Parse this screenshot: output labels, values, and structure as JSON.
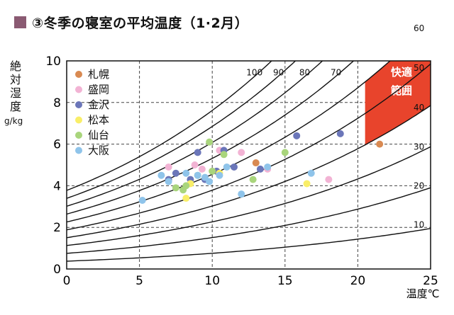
{
  "header": {
    "title": "③冬季の寝室の平均温度（1·2月）",
    "marker_color": "#8a5a72"
  },
  "chart_data": {
    "type": "scatter",
    "title": "③冬季の寝室の平均温度（1·2月）",
    "xlabel": "温度℃",
    "ylabel": "絶対湿度",
    "yunit": "g/kg",
    "xlim": [
      0,
      25
    ],
    "ylim": [
      0,
      10
    ],
    "xticks": [
      0,
      5,
      10,
      15,
      20,
      25
    ],
    "yticks": [
      0,
      2,
      4,
      6,
      8,
      10
    ],
    "grid": true,
    "legend_position": "top-left",
    "rh_curves": [
      {
        "label": "10",
        "rh": 10
      },
      {
        "label": "20",
        "rh": 20
      },
      {
        "label": "30",
        "rh": 30
      },
      {
        "label": "40",
        "rh": 40
      },
      {
        "label": "50",
        "rh": 50
      },
      {
        "label": "60",
        "rh": 60
      },
      {
        "label": "70",
        "rh": 70
      },
      {
        "label": "80",
        "rh": 80
      },
      {
        "label": "90",
        "rh": 90
      },
      {
        "label": "100",
        "rh": 100
      }
    ],
    "comfort_zone": {
      "label_line1": "快適",
      "label_line2": "範囲",
      "color": "#e8442c",
      "temp_range": [
        20.5,
        25
      ],
      "rh_range": [
        40,
        60
      ]
    },
    "series": [
      {
        "name": "札幌",
        "color": "#d98a52",
        "points": [
          [
            13.0,
            5.1
          ],
          [
            21.5,
            6.0
          ]
        ]
      },
      {
        "name": "盛岡",
        "color": "#f2b3d4",
        "points": [
          [
            7.0,
            4.9
          ],
          [
            8.8,
            5.0
          ],
          [
            9.3,
            4.8
          ],
          [
            10.5,
            5.7
          ],
          [
            12.0,
            5.6
          ],
          [
            13.8,
            4.8
          ],
          [
            18.0,
            4.3
          ]
        ]
      },
      {
        "name": "金沢",
        "color": "#6b76b9",
        "points": [
          [
            7.0,
            4.3
          ],
          [
            7.5,
            4.6
          ],
          [
            8.5,
            4.3
          ],
          [
            9.0,
            5.6
          ],
          [
            9.5,
            4.3
          ],
          [
            10.3,
            4.7
          ],
          [
            10.8,
            5.7
          ],
          [
            11.5,
            4.9
          ],
          [
            13.3,
            4.8
          ],
          [
            15.8,
            6.4
          ],
          [
            18.8,
            6.5
          ]
        ]
      },
      {
        "name": "松本",
        "color": "#f9ee68",
        "points": [
          [
            8.2,
            3.4
          ],
          [
            8.5,
            4.1
          ],
          [
            10.5,
            4.6
          ],
          [
            16.5,
            4.1
          ]
        ]
      },
      {
        "name": "仙台",
        "color": "#a9d57c",
        "points": [
          [
            7.5,
            3.9
          ],
          [
            8.0,
            3.8
          ],
          [
            8.2,
            4.0
          ],
          [
            9.0,
            4.5
          ],
          [
            9.8,
            6.1
          ],
          [
            10.0,
            4.7
          ],
          [
            10.8,
            5.5
          ],
          [
            12.8,
            4.3
          ],
          [
            15.0,
            5.6
          ]
        ]
      },
      {
        "name": "大阪",
        "color": "#8fc4ea",
        "points": [
          [
            5.2,
            3.3
          ],
          [
            6.5,
            4.5
          ],
          [
            7.0,
            4.2
          ],
          [
            8.2,
            4.6
          ],
          [
            9.0,
            4.5
          ],
          [
            9.5,
            4.4
          ],
          [
            9.8,
            4.2
          ],
          [
            10.5,
            4.5
          ],
          [
            11.0,
            4.9
          ],
          [
            12.0,
            3.6
          ],
          [
            13.8,
            4.9
          ],
          [
            16.8,
            4.6
          ]
        ]
      }
    ]
  }
}
